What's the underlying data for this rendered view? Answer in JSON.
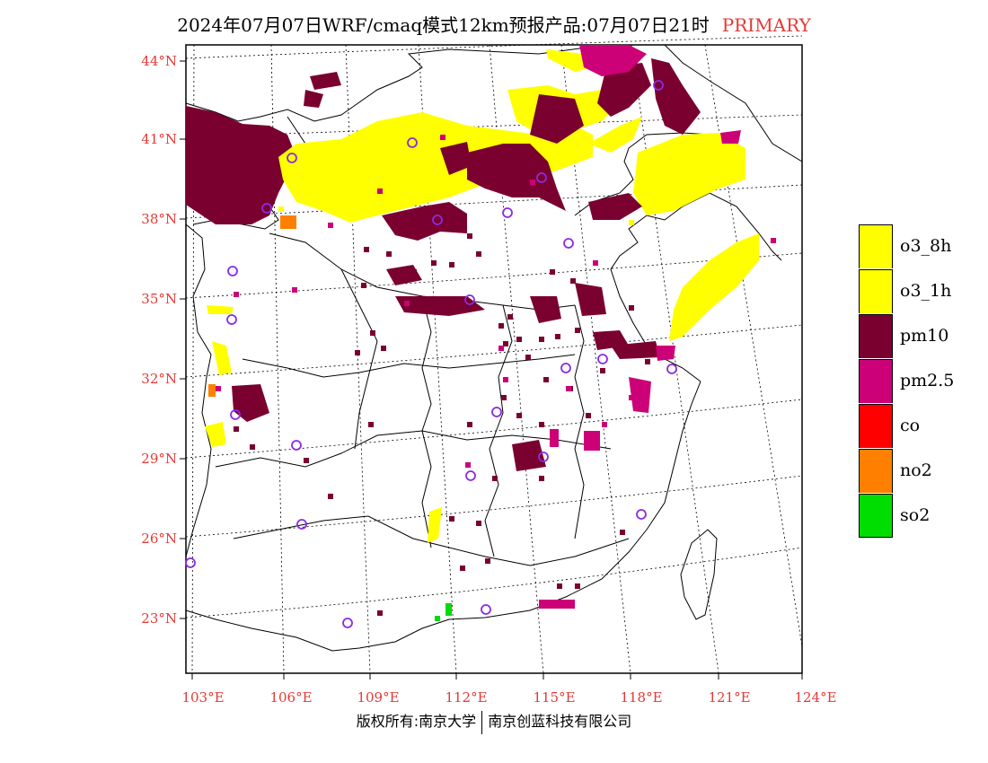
{
  "title": {
    "main": "2024年07月07日WRF/cmaq模式12km预报产品:07月07日21时",
    "tag": "PRIMARY"
  },
  "map": {
    "lat_labels": [
      "44°N",
      "41°N",
      "38°N",
      "35°N",
      "32°N",
      "29°N",
      "26°N",
      "23°N"
    ],
    "lon_labels": [
      "103°E",
      "106°E",
      "109°E",
      "112°E",
      "115°E",
      "118°E",
      "121°E",
      "124°E"
    ],
    "colors": {
      "o3": "#ffff00",
      "pm10": "#7a0030",
      "pm25": "#cc0077",
      "no2": "#ff8000",
      "so2": "#00dd00",
      "station": "#8a2be2"
    }
  },
  "legend": {
    "items": [
      {
        "label": "o3_8h",
        "color": "#ffff00"
      },
      {
        "label": "o3_1h",
        "color": "#ffff00"
      },
      {
        "label": "pm10",
        "color": "#7a0030"
      },
      {
        "label": "pm2.5",
        "color": "#cc0077"
      },
      {
        "label": "co",
        "color": "#ff0000"
      },
      {
        "label": "no2",
        "color": "#ff8000"
      },
      {
        "label": "so2",
        "color": "#00dd00"
      }
    ]
  },
  "footer": {
    "left": "版权所有:南京大学",
    "right": "南京创蓝科技有限公司"
  }
}
